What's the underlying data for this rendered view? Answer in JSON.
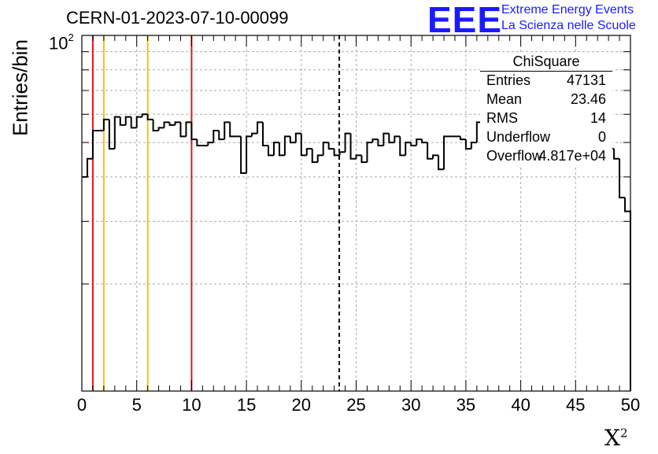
{
  "header": {
    "run_title": "CERN-01-2023-07-10-00099",
    "logo_text": "EEE",
    "logo_line1": "Extreme Energy Events",
    "logo_line2": "La Scienza nelle Scuole"
  },
  "stats_box": {
    "title": "ChiSquare",
    "rows": [
      {
        "key": "Entries",
        "value": "47131"
      },
      {
        "key": "Mean",
        "value": "23.46"
      },
      {
        "key": "RMS",
        "value": "14"
      },
      {
        "key": "Underflow",
        "value": "0"
      },
      {
        "key": "Overflow",
        "value": "4.817e+04"
      }
    ]
  },
  "colors": {
    "histogram": "#000000",
    "red_marker": "#e8141c",
    "yellow_marker": "#f4c20d",
    "mean_line": "#000000",
    "grid": "#aaaaaa",
    "logo": "#1a1aff"
  },
  "chart_data": {
    "type": "histogram",
    "title": "CERN-01-2023-07-10-00099",
    "xlabel": "X",
    "xlabel_superscript": "2",
    "ylabel": "Entries/bin",
    "xlim": [
      0,
      50
    ],
    "ylim": [
      10,
      100
    ],
    "yscale": "log",
    "grid": true,
    "bin_width": 0.5,
    "x_ticks": [
      0,
      5,
      10,
      15,
      20,
      25,
      30,
      35,
      40,
      45,
      50
    ],
    "x_tick_labels": [
      "0",
      "5",
      "10",
      "15",
      "20",
      "25",
      "30",
      "35",
      "40",
      "45",
      "50"
    ],
    "y_tick_label_base": "10",
    "y_tick_label_exponent": "2",
    "values": [
      40,
      45,
      54,
      54,
      58,
      48,
      59,
      56,
      59,
      55,
      59,
      60,
      58,
      54,
      55,
      57,
      56,
      57,
      52,
      57,
      51,
      49,
      49,
      50,
      54,
      51,
      57,
      52,
      52,
      41,
      52,
      53,
      57,
      49,
      46,
      50,
      46,
      52,
      50,
      53,
      46,
      48,
      44,
      46,
      50,
      48,
      46,
      47,
      53,
      45,
      46,
      44,
      50,
      51,
      49,
      53,
      50,
      52,
      46,
      50,
      49,
      51,
      50,
      45,
      46,
      42,
      52,
      52,
      52,
      51,
      48,
      50,
      57,
      50,
      50,
      47,
      49,
      46,
      49,
      54,
      47,
      55,
      50,
      48,
      52,
      44,
      50,
      53,
      51,
      51,
      55,
      52,
      48,
      46,
      45,
      45,
      48,
      45,
      35,
      32
    ],
    "vertical_markers": [
      {
        "x": 1,
        "color": "red",
        "style": "solid"
      },
      {
        "x": 2,
        "color": "yellow",
        "style": "solid"
      },
      {
        "x": 6,
        "color": "yellow",
        "style": "solid"
      },
      {
        "x": 10,
        "color": "red",
        "style": "solid"
      },
      {
        "x": 23.46,
        "color": "black",
        "style": "dashed"
      }
    ]
  }
}
